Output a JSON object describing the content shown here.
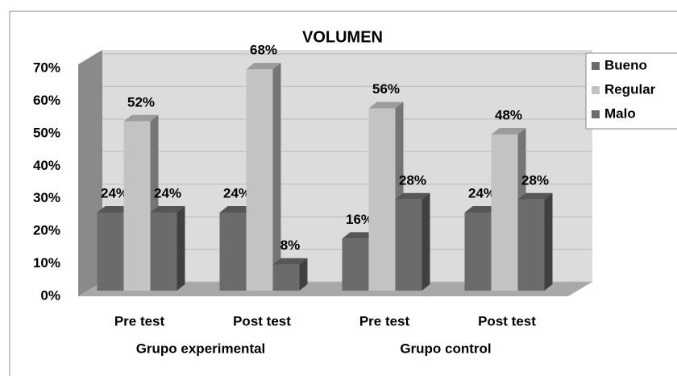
{
  "chart_data": {
    "type": "bar3d",
    "title": "VOLUMEN",
    "categories": [
      "Pre test",
      "Post test",
      "Pre test",
      "Post test"
    ],
    "groups": [
      "Grupo experimental",
      "Grupo control"
    ],
    "series": [
      {
        "name": "Bueno",
        "color": "#6b6b6b",
        "values": [
          24,
          24,
          16,
          24
        ],
        "value_labels": [
          "24%",
          "24%",
          "16%",
          "24%"
        ]
      },
      {
        "name": "Regular",
        "color": "#c3c3c3",
        "values": [
          52,
          68,
          56,
          48
        ],
        "value_labels": [
          "52%",
          "68%",
          "56%",
          "48%"
        ]
      },
      {
        "name": "Malo",
        "color": "#6b6b6b",
        "values": [
          24,
          8,
          28,
          28
        ],
        "value_labels": [
          "24%",
          "8%",
          "28%",
          "28%"
        ]
      }
    ],
    "ylim": [
      0,
      70
    ],
    "yticks": [
      {
        "value": 0,
        "label": "0%"
      },
      {
        "value": 10,
        "label": "10%"
      },
      {
        "value": 20,
        "label": "20%"
      },
      {
        "value": 30,
        "label": "30%"
      },
      {
        "value": 40,
        "label": "40%"
      },
      {
        "value": 50,
        "label": "50%"
      },
      {
        "value": 60,
        "label": "60%"
      },
      {
        "value": 70,
        "label": "70%"
      }
    ],
    "legend": "right"
  }
}
